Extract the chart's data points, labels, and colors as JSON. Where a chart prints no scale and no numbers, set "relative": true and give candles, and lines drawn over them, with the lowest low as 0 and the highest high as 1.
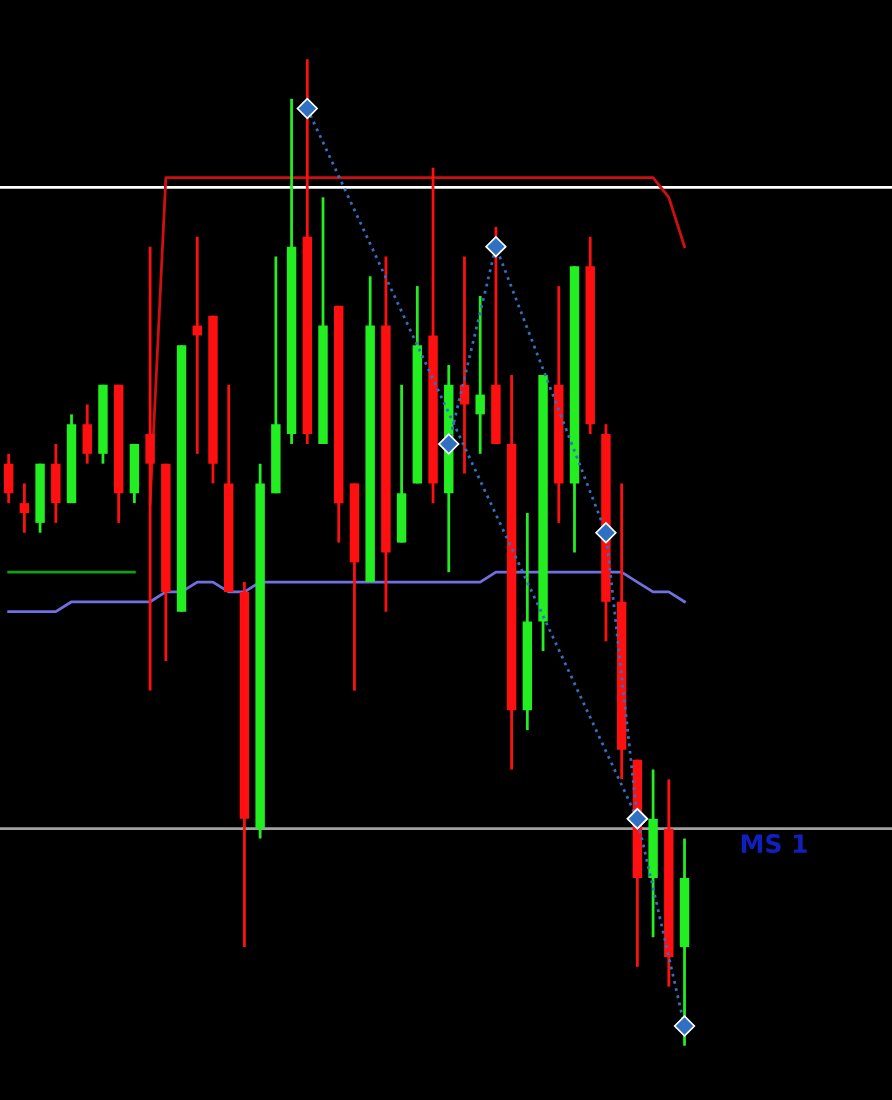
{
  "chart_data": {
    "type": "candlestick",
    "relative": true,
    "categories": [
      null,
      null,
      null,
      null,
      null,
      null,
      null,
      null,
      null,
      null,
      null,
      null,
      null,
      null,
      null,
      null,
      null,
      null,
      null,
      null,
      null,
      null,
      null,
      null,
      null,
      null,
      null,
      null,
      null,
      null,
      null,
      null,
      null,
      null,
      null,
      null,
      null,
      null,
      null,
      null,
      null,
      null,
      null,
      null
    ],
    "ohlc": [
      [
        0.59,
        0.6,
        0.55,
        0.56
      ],
      [
        0.55,
        0.57,
        0.52,
        0.54
      ],
      [
        0.53,
        0.59,
        0.52,
        0.59
      ],
      [
        0.59,
        0.61,
        0.53,
        0.55
      ],
      [
        0.55,
        0.64,
        0.55,
        0.63
      ],
      [
        0.63,
        0.65,
        0.59,
        0.6
      ],
      [
        0.6,
        0.67,
        0.59,
        0.67
      ],
      [
        0.67,
        0.67,
        0.53,
        0.56
      ],
      [
        0.56,
        0.61,
        0.55,
        0.61
      ],
      [
        0.62,
        0.81,
        0.36,
        0.59
      ],
      [
        0.59,
        0.59,
        0.39,
        0.46
      ],
      [
        0.44,
        0.71,
        0.44,
        0.71
      ],
      [
        0.73,
        0.82,
        0.6,
        0.72
      ],
      [
        0.74,
        0.74,
        0.57,
        0.59
      ],
      [
        0.57,
        0.67,
        0.46,
        0.46
      ],
      [
        0.46,
        0.47,
        0.1,
        0.23
      ],
      [
        0.22,
        0.59,
        0.21,
        0.57
      ],
      [
        0.56,
        0.8,
        0.56,
        0.63
      ],
      [
        0.62,
        0.96,
        0.61,
        0.81
      ],
      [
        0.82,
        1.0,
        0.61,
        0.62
      ],
      [
        0.61,
        0.86,
        0.61,
        0.73
      ],
      [
        0.75,
        0.75,
        0.51,
        0.55
      ],
      [
        0.57,
        0.57,
        0.36,
        0.49
      ],
      [
        0.47,
        0.78,
        0.47,
        0.73
      ],
      [
        0.73,
        0.8,
        0.44,
        0.5
      ],
      [
        0.51,
        0.67,
        0.51,
        0.56
      ],
      [
        0.57,
        0.77,
        0.57,
        0.71
      ],
      [
        0.72,
        0.89,
        0.55,
        0.57
      ],
      [
        0.56,
        0.69,
        0.48,
        0.67
      ],
      [
        0.67,
        0.8,
        0.58,
        0.65
      ],
      [
        0.64,
        0.76,
        0.6,
        0.66
      ],
      [
        0.67,
        0.83,
        0.61,
        0.61
      ],
      [
        0.61,
        0.68,
        0.28,
        0.34
      ],
      [
        0.34,
        0.54,
        0.32,
        0.43
      ],
      [
        0.43,
        0.68,
        0.4,
        0.68
      ],
      [
        0.67,
        0.77,
        0.53,
        0.57
      ],
      [
        0.57,
        0.79,
        0.5,
        0.79
      ],
      [
        0.79,
        0.82,
        0.62,
        0.63
      ],
      [
        0.62,
        0.63,
        0.41,
        0.45
      ],
      [
        0.45,
        0.57,
        0.27,
        0.3
      ],
      [
        0.29,
        0.29,
        0.08,
        0.17
      ],
      [
        0.17,
        0.28,
        0.11,
        0.23
      ],
      [
        0.22,
        0.27,
        0.06,
        0.09
      ],
      [
        0.1,
        0.21,
        0.0,
        0.17
      ]
    ],
    "series": [
      {
        "type": "line",
        "color": "#7070e0",
        "line_style": "solid",
        "values": [
          0.44,
          0.44,
          0.44,
          0.44,
          0.45,
          0.45,
          0.45,
          0.45,
          0.45,
          0.45,
          0.46,
          0.46,
          0.47,
          0.47,
          0.46,
          0.46,
          0.47,
          0.47,
          0.47,
          0.47,
          0.47,
          0.47,
          0.47,
          0.47,
          0.47,
          0.47,
          0.47,
          0.47,
          0.47,
          0.47,
          0.47,
          0.48,
          0.48,
          0.48,
          0.48,
          0.48,
          0.48,
          0.48,
          0.48,
          0.48,
          0.47,
          0.46,
          0.46,
          0.45
        ]
      },
      {
        "type": "line",
        "color": "#d01010",
        "line_style": "solid",
        "values": [
          null,
          null,
          null,
          null,
          null,
          null,
          null,
          null,
          null,
          0.55,
          0.88,
          0.88,
          0.88,
          0.88,
          0.88,
          0.88,
          0.88,
          0.88,
          0.88,
          0.88,
          0.88,
          0.88,
          0.88,
          0.88,
          0.88,
          0.88,
          0.88,
          0.88,
          0.88,
          0.88,
          0.88,
          0.88,
          0.88,
          0.88,
          0.88,
          0.88,
          0.88,
          0.88,
          0.88,
          0.88,
          0.88,
          0.88,
          0.86,
          0.81
        ]
      },
      {
        "type": "line",
        "color": "#10a010",
        "line_style": "solid",
        "values": [
          0.48,
          0.48,
          0.48,
          0.48,
          0.48,
          0.48,
          0.48,
          0.48,
          0.48,
          null,
          null,
          null,
          null,
          null,
          null,
          null,
          null,
          null,
          null,
          null,
          null,
          null,
          null,
          null,
          null,
          null,
          null,
          null,
          null,
          null,
          null,
          null,
          null,
          null,
          null,
          null,
          null,
          null,
          null,
          null,
          null,
          null,
          null,
          null
        ]
      },
      {
        "type": "line",
        "color": "#3070c0",
        "line_style": "dotted",
        "marker": "diamond",
        "values": [
          null,
          null,
          null,
          null,
          null,
          null,
          null,
          null,
          null,
          null,
          null,
          null,
          null,
          null,
          null,
          null,
          null,
          null,
          null,
          0.95,
          null,
          null,
          null,
          null,
          null,
          null,
          null,
          null,
          null,
          null,
          null,
          null,
          null,
          null,
          null,
          null,
          null,
          null,
          null,
          null,
          0.23,
          null,
          null,
          0.02
        ]
      },
      {
        "type": "line",
        "color": "#3070c0",
        "line_style": "dotted",
        "marker": "diamond",
        "values": [
          null,
          null,
          null,
          null,
          null,
          null,
          null,
          null,
          null,
          null,
          null,
          null,
          null,
          null,
          null,
          null,
          null,
          null,
          null,
          null,
          null,
          null,
          null,
          null,
          null,
          null,
          null,
          null,
          0.61,
          null,
          null,
          0.81,
          null,
          null,
          null,
          null,
          null,
          null,
          0.52,
          null,
          0.23,
          null,
          null,
          null
        ]
      }
    ],
    "ref_lines": [
      {
        "axis": "y",
        "value": 0.87,
        "color": "#ffffff",
        "line_style": "solid"
      },
      {
        "axis": "y",
        "value": 0.22,
        "label": "MS 1",
        "color": "#a0a0a0",
        "line_style": "solid"
      }
    ]
  }
}
